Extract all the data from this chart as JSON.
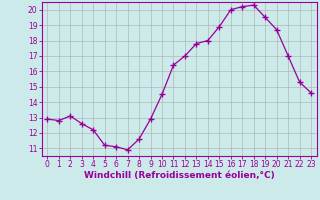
{
  "x": [
    0,
    1,
    2,
    3,
    4,
    5,
    6,
    7,
    8,
    9,
    10,
    11,
    12,
    13,
    14,
    15,
    16,
    17,
    18,
    19,
    20,
    21,
    22,
    23
  ],
  "y": [
    12.9,
    12.8,
    13.1,
    12.6,
    12.2,
    11.2,
    11.1,
    10.9,
    11.6,
    12.9,
    14.5,
    16.4,
    17.0,
    17.8,
    18.0,
    18.9,
    20.0,
    20.2,
    20.3,
    19.5,
    18.7,
    17.0,
    15.3,
    14.6
  ],
  "line_color": "#990099",
  "marker": "+",
  "marker_size": 4,
  "bg_color": "#cceaea",
  "grid_color": "#aaaaaa",
  "xlabel": "Windchill (Refroidissement éolien,°C)",
  "xlim": [
    -0.5,
    23.5
  ],
  "ylim": [
    10.5,
    20.5
  ],
  "yticks": [
    11,
    12,
    13,
    14,
    15,
    16,
    17,
    18,
    19,
    20
  ],
  "xticks": [
    0,
    1,
    2,
    3,
    4,
    5,
    6,
    7,
    8,
    9,
    10,
    11,
    12,
    13,
    14,
    15,
    16,
    17,
    18,
    19,
    20,
    21,
    22,
    23
  ],
  "tick_color": "#990099",
  "label_color": "#990099",
  "axis_color": "#990099",
  "tick_labelsize": 5.5,
  "xlabel_fontsize": 6.5
}
